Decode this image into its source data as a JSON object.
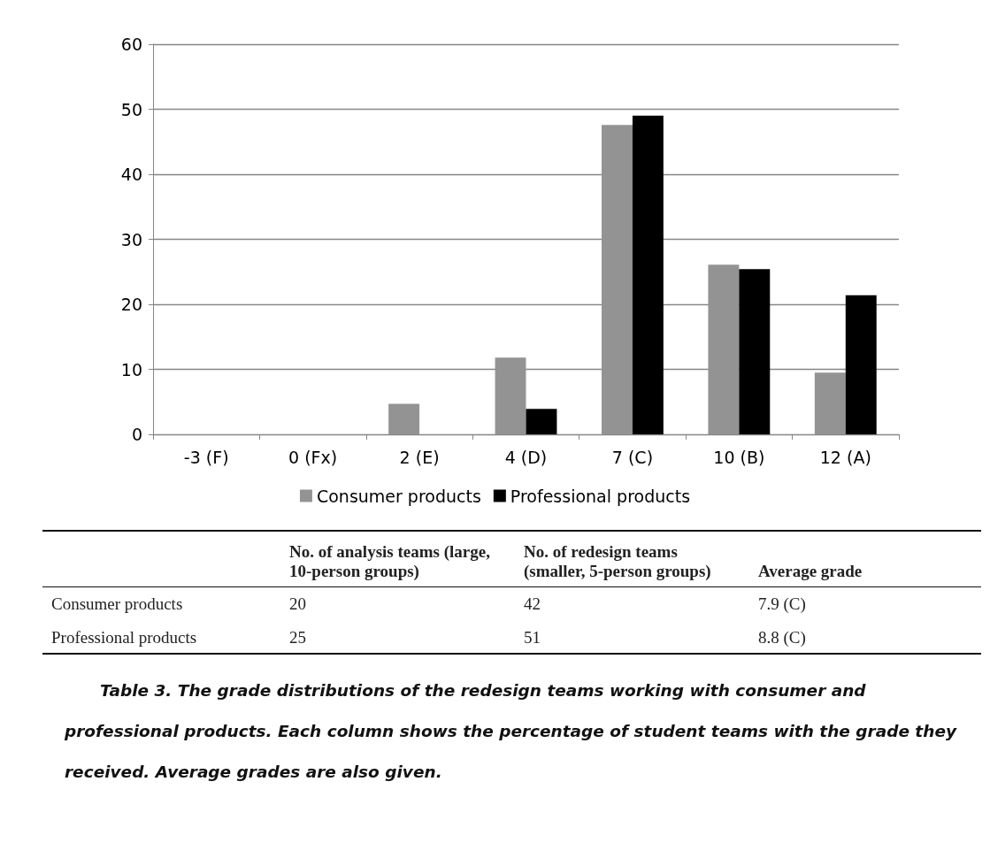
{
  "chart_data": [
    {
      "type": "bar",
      "categories": [
        "-3 (F)",
        "0 (Fx)",
        "2 (E)",
        "4 (D)",
        "7 (C)",
        "10 (B)",
        "12 (A)"
      ],
      "series": [
        {
          "name": "Consumer products",
          "color": "#939393",
          "values": [
            0,
            0,
            4.7,
            11.8,
            47.6,
            26.1,
            9.5
          ]
        },
        {
          "name": "Professional products",
          "color": "#000000",
          "values": [
            0,
            0,
            0,
            3.9,
            49.0,
            25.4,
            21.4
          ]
        }
      ],
      "ylim": [
        0,
        60
      ],
      "yticks": [
        0,
        10,
        20,
        30,
        40,
        50,
        60
      ],
      "grid": "y",
      "legend": "bottom"
    },
    {
      "type": "other",
      "categories": [
        null,
        "No. of analysis teams (large, 10-person groups)",
        "No. of redesign teams (smaller, 5-person groups)",
        "Average grade"
      ],
      "y_categories": [
        "Consumer products",
        "Professional products"
      ],
      "cell_labels": [
        [
          "20",
          "42",
          "7.9 (C)"
        ],
        [
          "25",
          "51",
          "8.8 (C)"
        ]
      ],
      "annotations": [
        "Table 3. The grade distributions of the redesign teams working with consumer and professional products. Each column shows the percentage of student teams with the grade they received. Average grades are also given."
      ]
    }
  ]
}
